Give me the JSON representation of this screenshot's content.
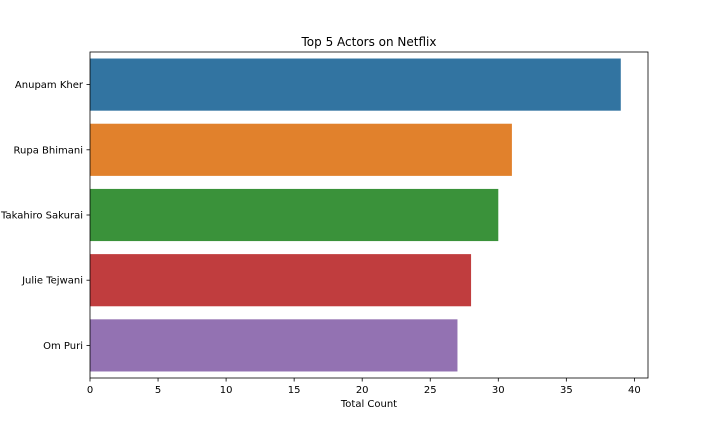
{
  "chart_data": {
    "type": "bar",
    "orientation": "horizontal",
    "title": "Top 5 Actors on Netflix",
    "xlabel": "Total Count",
    "ylabel": "",
    "categories": [
      "Anupam Kher",
      "Rupa Bhimani",
      "Takahiro Sakurai",
      "Julie Tejwani",
      "Om Puri"
    ],
    "values": [
      39,
      31,
      30,
      28,
      27
    ],
    "colors": [
      "#3274a1",
      "#e1812c",
      "#3a923a",
      "#c03d3e",
      "#9372b2"
    ],
    "xlim": [
      0,
      41
    ],
    "xticks": [
      0,
      5,
      10,
      15,
      20,
      25,
      30,
      35,
      40
    ],
    "grid": false,
    "legend": "none"
  }
}
